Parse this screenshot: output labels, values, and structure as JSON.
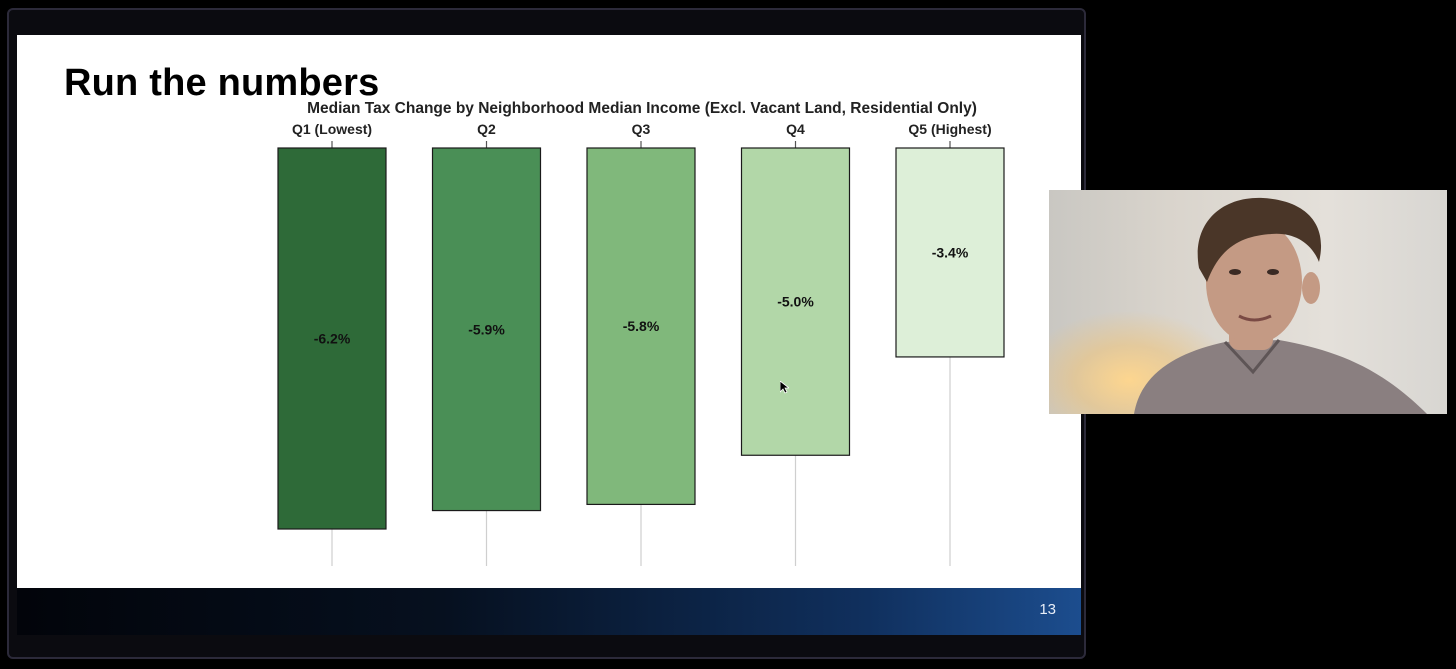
{
  "slide": {
    "title": "Run the numbers",
    "page_number": "13"
  },
  "chart_data": {
    "type": "bar",
    "title": "Median Tax Change by Neighborhood Median Income (Excl. Vacant Land, Residential Only)",
    "categories": [
      "Q1 (Lowest)",
      "Q2",
      "Q3",
      "Q4",
      "Q5 (Highest)"
    ],
    "values": [
      -6.2,
      -5.9,
      -5.8,
      -5.0,
      -3.4
    ],
    "value_labels": [
      "-6.2%",
      "-5.9%",
      "-5.8%",
      "-5.0%",
      "-3.4%"
    ],
    "unit": "%",
    "xlabel": "",
    "ylabel": "",
    "x_axis_position": "top",
    "ylim": [
      -6.9,
      0
    ],
    "grid": false,
    "legend": "none",
    "colors": [
      "#2e6a38",
      "#4a8f56",
      "#80b87b",
      "#b2d7a8",
      "#ddefd8"
    ]
  },
  "webcam": {
    "skin": "#c49a84",
    "hair": "#4a3628",
    "shirt": "#8a7f80"
  }
}
